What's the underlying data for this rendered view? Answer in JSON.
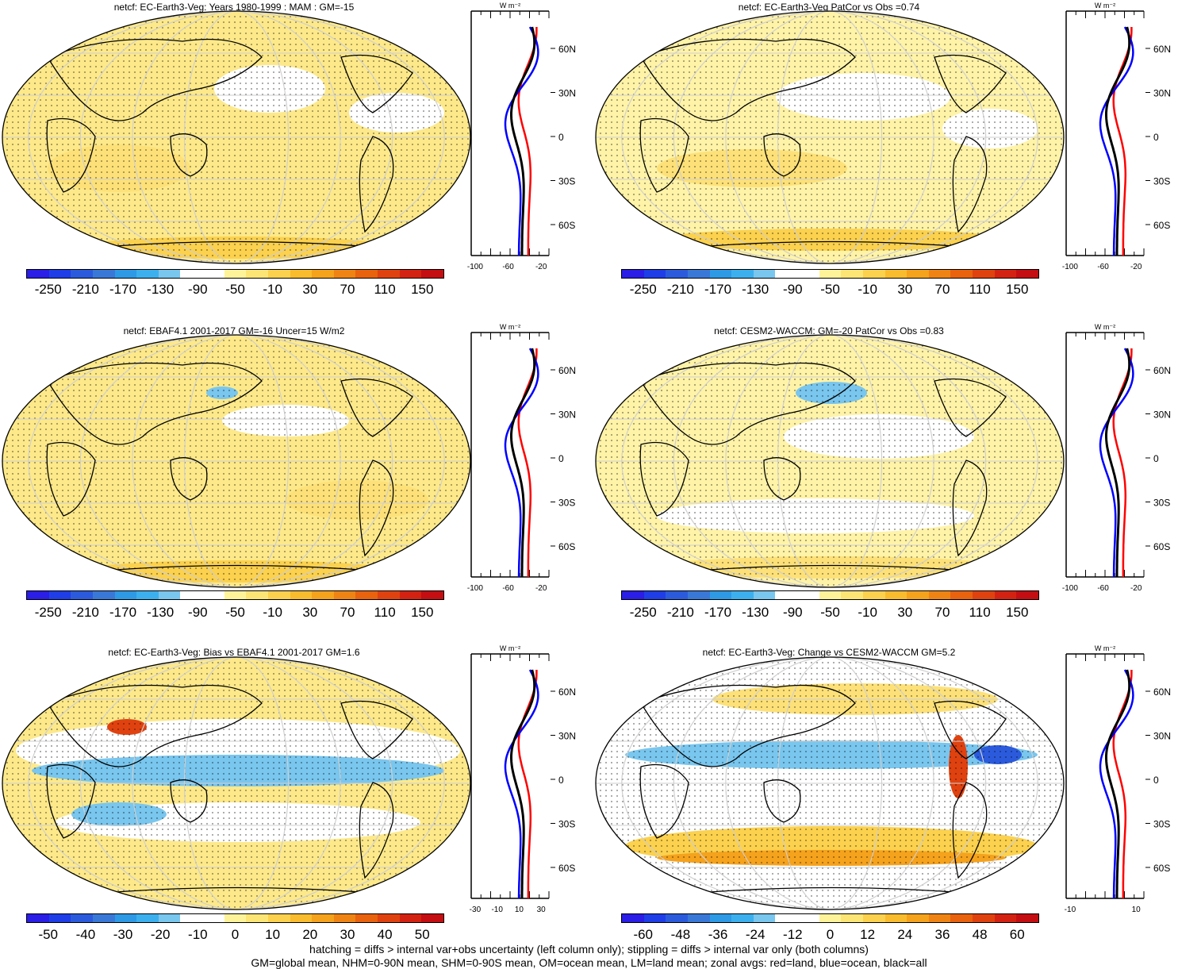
{
  "panels": [
    {
      "title": "netcf: EC-Earth3-Veg: Years 1980-1999 : MAM : GM=-15",
      "zonal": {
        "ticks": [
          "-100",
          "-60",
          "-20"
        ],
        "unit": "W m⁻²",
        "lat_labels": [
          "60N",
          "30N",
          "0",
          "30S",
          "60S"
        ]
      },
      "colorbar": [
        "-250",
        "-210",
        "-170",
        "-130",
        "-90",
        "-50",
        "-10",
        "30",
        "70",
        "110",
        "150"
      ]
    },
    {
      "title": "netcf: EC-Earth3-Veg PatCor vs Obs =0.74",
      "zonal": {
        "ticks": [
          "-100",
          "-60",
          "-20"
        ],
        "unit": "W m⁻²",
        "lat_labels": [
          "60N",
          "30N",
          "0",
          "30S",
          "60S"
        ]
      },
      "colorbar": [
        "-250",
        "-210",
        "-170",
        "-130",
        "-90",
        "-50",
        "-10",
        "30",
        "70",
        "110",
        "150"
      ]
    },
    {
      "title": "netcf: EBAF4.1 2001-2017 GM=-16 Uncer=15 W/m2",
      "zonal": {
        "ticks": [
          "-100",
          "-60",
          "-20"
        ],
        "unit": "W m⁻²",
        "lat_labels": [
          "60N",
          "30N",
          "0",
          "30S",
          "60S"
        ]
      },
      "colorbar": [
        "-250",
        "-210",
        "-170",
        "-130",
        "-90",
        "-50",
        "-10",
        "30",
        "70",
        "110",
        "150"
      ]
    },
    {
      "title": "netcf: CESM2-WACCM: GM=-20 PatCor vs Obs =0.83",
      "zonal": {
        "ticks": [
          "-100",
          "-60",
          "-20"
        ],
        "unit": "W m⁻²",
        "lat_labels": [
          "60N",
          "30N",
          "0",
          "30S",
          "60S"
        ]
      },
      "colorbar": [
        "-250",
        "-210",
        "-170",
        "-130",
        "-90",
        "-50",
        "-10",
        "30",
        "70",
        "110",
        "150"
      ]
    },
    {
      "title": "netcf: EC-Earth3-Veg: Bias vs EBAF4.1 2001-2017 GM=1.6",
      "zonal": {
        "ticks": [
          "-30",
          "-10",
          "10",
          "30"
        ],
        "unit": "W m⁻²",
        "lat_labels": [
          "60N",
          "30N",
          "0",
          "30S",
          "60S"
        ]
      },
      "colorbar": [
        "-50",
        "-40",
        "-30",
        "-20",
        "-10",
        "0",
        "10",
        "20",
        "30",
        "40",
        "50"
      ]
    },
    {
      "title": "netcf: EC-Earth3-Veg: Change vs CESM2-WACCM GM=5.2",
      "zonal": {
        "ticks": [
          "-10",
          "10"
        ],
        "unit": "W m⁻²",
        "lat_labels": [
          "60N",
          "30N",
          "0",
          "30S",
          "60S"
        ]
      },
      "colorbar": [
        "-60",
        "-48",
        "-36",
        "-24",
        "-12",
        "0",
        "12",
        "24",
        "36",
        "48",
        "60"
      ]
    }
  ],
  "colorbar_colors": [
    "#2b1ee6",
    "#1f3ee8",
    "#2b5bdc",
    "#3a78d8",
    "#2e9ae6",
    "#3cb0ee",
    "#79c6ee",
    "#ffffff",
    "#ffffff",
    "#fff39a",
    "#fde575",
    "#fbd14e",
    "#f9bc2e",
    "#f5a21d",
    "#ef8414",
    "#e9620d",
    "#e0420f",
    "#d42212",
    "#c40e12"
  ],
  "footer": {
    "line1": "hatching = diffs > internal var+obs uncertainty (left column only); stippling = diffs > internal var only (both columns)",
    "line2": "GM=global mean, NHM=0-90N mean, SHM=0-90S mean, OM=ocean mean, LM=land mean; zonal avgs: red=land, blue=ocean, black=all"
  }
}
